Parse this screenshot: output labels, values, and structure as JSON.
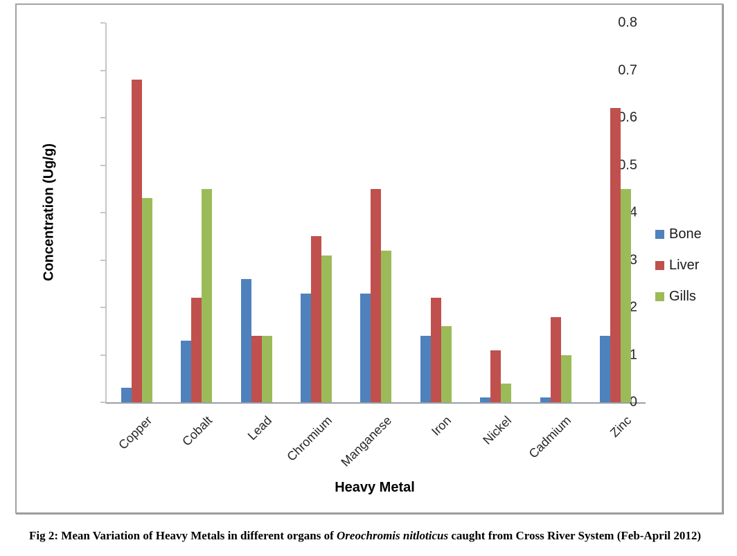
{
  "figure": {
    "caption": {
      "prefix": "Fig 2: Mean Variation of Heavy Metals in different organs of ",
      "species": "Oreochromis nitloticus",
      "suffix": " caught from Cross River System (Feb-April 2012)"
    }
  },
  "chart_data": {
    "type": "bar",
    "title": "",
    "xlabel": "Heavy Metal",
    "ylabel": "Concentration (Ug/g)",
    "ylim": [
      0,
      0.8
    ],
    "yticks": [
      0,
      0.1,
      0.2,
      0.3,
      0.4,
      0.5,
      0.6,
      0.7,
      0.8
    ],
    "grid": false,
    "legend_position": "right",
    "categories": [
      "Copper",
      "Cobalt",
      "Lead",
      "Chromium",
      "Manganese",
      "Iron",
      "Nickel",
      "Cadmium",
      "Zinc"
    ],
    "series": [
      {
        "name": "Bone",
        "color": "#4F81BD",
        "values": [
          0.03,
          0.13,
          0.26,
          0.23,
          0.23,
          0.14,
          0.01,
          0.01,
          0.14
        ]
      },
      {
        "name": "Liver",
        "color": "#C0504D",
        "values": [
          0.68,
          0.22,
          0.14,
          0.35,
          0.45,
          0.22,
          0.11,
          0.18,
          0.62
        ]
      },
      {
        "name": "Gills",
        "color": "#9BBB59",
        "values": [
          0.43,
          0.45,
          0.14,
          0.31,
          0.32,
          0.16,
          0.04,
          0.1,
          0.45
        ]
      }
    ]
  }
}
